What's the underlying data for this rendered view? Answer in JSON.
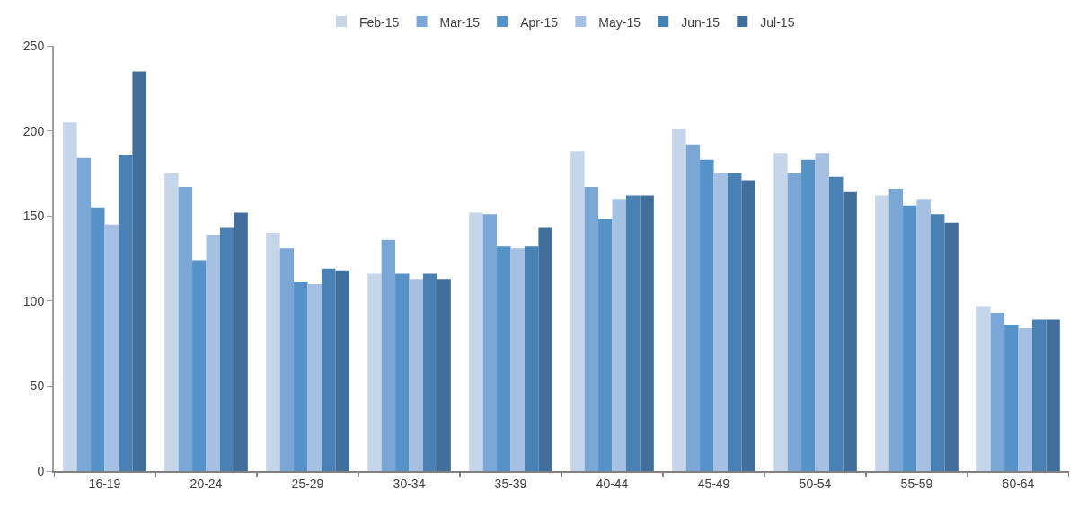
{
  "chart_data": {
    "type": "bar",
    "categories": [
      "16-19",
      "20-24",
      "25-29",
      "30-34",
      "35-39",
      "40-44",
      "45-49",
      "50-54",
      "55-59",
      "60-64"
    ],
    "series": [
      {
        "name": "Feb-15",
        "color": "#c5d5ea",
        "values": [
          205,
          175,
          140,
          116,
          152,
          188,
          201,
          187,
          162,
          97
        ]
      },
      {
        "name": "Mar-15",
        "color": "#7ba7d7",
        "values": [
          184,
          167,
          131,
          136,
          151,
          167,
          192,
          175,
          166,
          93
        ]
      },
      {
        "name": "Apr-15",
        "color": "#5592c8",
        "values": [
          155,
          124,
          111,
          116,
          132,
          148,
          183,
          183,
          156,
          86
        ]
      },
      {
        "name": "May-15",
        "color": "#a5c0e2",
        "values": [
          145,
          139,
          110,
          113,
          131,
          160,
          175,
          187,
          160,
          84
        ]
      },
      {
        "name": "Jun-15",
        "color": "#4a81b4",
        "values": [
          186,
          143,
          119,
          116,
          132,
          162,
          175,
          173,
          151,
          89
        ]
      },
      {
        "name": "Jul-15",
        "color": "#416f9c",
        "values": [
          235,
          152,
          118,
          113,
          143,
          162,
          171,
          164,
          146,
          89
        ]
      }
    ],
    "ylim": [
      0,
      250
    ],
    "yticks": [
      0,
      50,
      100,
      150,
      200,
      250
    ],
    "grid": false,
    "legend": "top"
  }
}
